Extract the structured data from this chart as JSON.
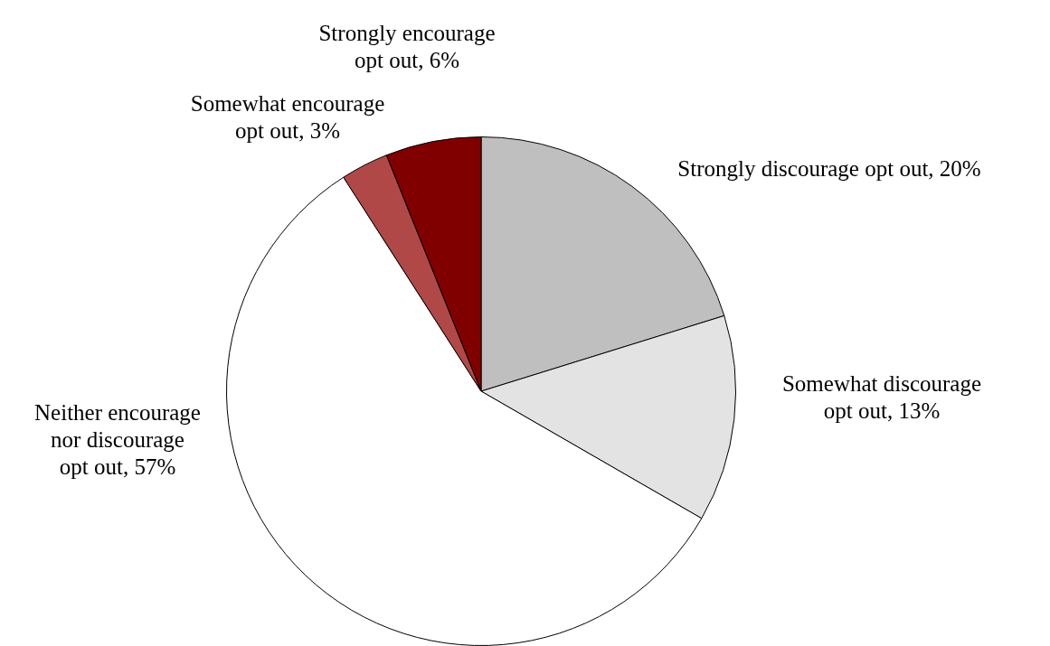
{
  "chart_data": {
    "type": "pie",
    "categories": [
      "Strongly discourage opt out",
      "Somewhat discourage opt out",
      "Neither encourage nor discourage opt out",
      "Somewhat encourage opt out",
      "Strongly encourage opt out"
    ],
    "values": [
      20,
      13,
      57,
      3,
      6
    ],
    "value_labels": [
      "20%",
      "13%",
      "57%",
      "3%",
      "6%"
    ],
    "colors": [
      "#bfbfbf",
      "#e3e3e3",
      "#ffffff",
      "#b04848",
      "#800000"
    ],
    "legend": false
  }
}
